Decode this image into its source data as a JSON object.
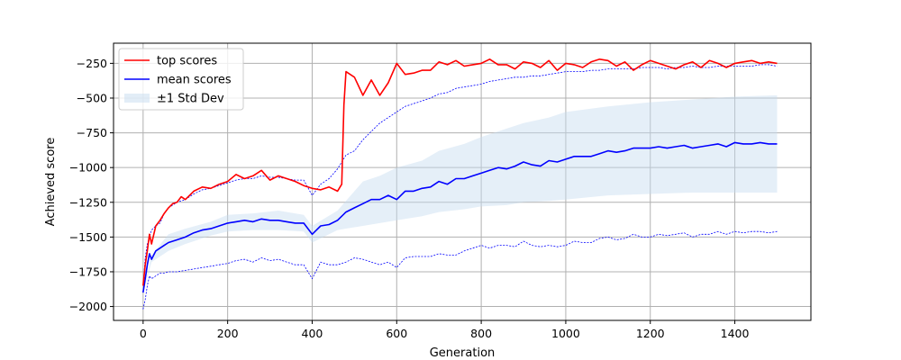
{
  "chart_data": {
    "type": "line",
    "xlabel": "Generation",
    "ylabel": "Achieved score",
    "xlim": [
      -70,
      1580
    ],
    "ylim": [
      -2100,
      -105
    ],
    "xticks": [
      0,
      200,
      400,
      600,
      800,
      1000,
      1200,
      1400
    ],
    "yticks": [
      -2000,
      -1750,
      -1500,
      -1250,
      -1000,
      -750,
      -500,
      -250
    ],
    "grid": true,
    "legend": {
      "placement": "top-left",
      "entries": [
        {
          "label": "top scores",
          "color": "#ff0000",
          "kind": "line"
        },
        {
          "label": "mean scores",
          "color": "#0000ff",
          "kind": "line"
        },
        {
          "label": "±1 Std Dev",
          "color": "#c6dbef",
          "kind": "patch"
        }
      ]
    },
    "series": [
      {
        "name": "top scores",
        "color": "#ff0000",
        "x": [
          0,
          5,
          10,
          15,
          20,
          30,
          40,
          50,
          60,
          70,
          80,
          90,
          100,
          120,
          140,
          160,
          180,
          200,
          220,
          240,
          260,
          280,
          300,
          320,
          340,
          360,
          380,
          400,
          420,
          440,
          460,
          470,
          475,
          480,
          500,
          520,
          540,
          560,
          580,
          600,
          620,
          640,
          660,
          680,
          700,
          720,
          740,
          760,
          780,
          800,
          820,
          840,
          860,
          880,
          900,
          920,
          940,
          960,
          980,
          1000,
          1020,
          1040,
          1060,
          1080,
          1100,
          1120,
          1140,
          1160,
          1180,
          1200,
          1220,
          1240,
          1260,
          1280,
          1300,
          1320,
          1340,
          1360,
          1380,
          1400,
          1420,
          1440,
          1460,
          1480,
          1500
        ],
        "values": [
          -1850,
          -1700,
          -1600,
          -1480,
          -1550,
          -1420,
          -1380,
          -1330,
          -1290,
          -1260,
          -1250,
          -1210,
          -1230,
          -1170,
          -1140,
          -1150,
          -1120,
          -1100,
          -1050,
          -1080,
          -1060,
          -1020,
          -1090,
          -1060,
          -1080,
          -1100,
          -1130,
          -1150,
          -1160,
          -1140,
          -1170,
          -1120,
          -550,
          -310,
          -350,
          -480,
          -370,
          -480,
          -390,
          -250,
          -330,
          -320,
          -300,
          -300,
          -240,
          -260,
          -230,
          -270,
          -260,
          -250,
          -220,
          -260,
          -260,
          -290,
          -240,
          -250,
          -280,
          -230,
          -300,
          -250,
          -260,
          -280,
          -240,
          -220,
          -230,
          -270,
          -240,
          -300,
          -260,
          -230,
          -250,
          -270,
          -290,
          -260,
          -240,
          -280,
          -230,
          -250,
          -280,
          -250,
          -240,
          -230,
          -250,
          -240,
          -250
        ]
      },
      {
        "name": "mean scores",
        "color": "#0000ff",
        "x": [
          0,
          5,
          10,
          15,
          20,
          30,
          40,
          50,
          60,
          80,
          100,
          120,
          140,
          160,
          180,
          200,
          220,
          240,
          260,
          280,
          300,
          320,
          340,
          360,
          380,
          400,
          420,
          440,
          460,
          480,
          500,
          520,
          540,
          560,
          580,
          600,
          620,
          640,
          660,
          680,
          700,
          720,
          740,
          760,
          780,
          800,
          820,
          840,
          860,
          880,
          900,
          920,
          940,
          960,
          980,
          1000,
          1020,
          1040,
          1060,
          1080,
          1100,
          1120,
          1140,
          1160,
          1180,
          1200,
          1220,
          1240,
          1260,
          1280,
          1300,
          1320,
          1340,
          1360,
          1380,
          1400,
          1420,
          1440,
          1460,
          1480,
          1500
        ],
        "values": [
          -1900,
          -1800,
          -1700,
          -1620,
          -1660,
          -1600,
          -1580,
          -1560,
          -1540,
          -1520,
          -1500,
          -1470,
          -1450,
          -1440,
          -1420,
          -1400,
          -1390,
          -1380,
          -1390,
          -1370,
          -1380,
          -1380,
          -1390,
          -1400,
          -1400,
          -1480,
          -1420,
          -1410,
          -1380,
          -1320,
          -1290,
          -1260,
          -1230,
          -1230,
          -1200,
          -1230,
          -1170,
          -1170,
          -1150,
          -1140,
          -1100,
          -1120,
          -1080,
          -1080,
          -1060,
          -1040,
          -1020,
          -1000,
          -1010,
          -990,
          -960,
          -980,
          -990,
          -950,
          -960,
          -940,
          -920,
          -920,
          -920,
          -900,
          -880,
          -890,
          -880,
          -860,
          -860,
          -860,
          -850,
          -860,
          -850,
          -840,
          -860,
          -850,
          -840,
          -830,
          -850,
          -820,
          -830,
          -830,
          -820,
          -830,
          -830
        ]
      },
      {
        "name": "",
        "color": "#0000ff",
        "style": "dotted-upper",
        "x": [
          0,
          5,
          10,
          15,
          20,
          30,
          40,
          50,
          60,
          80,
          100,
          120,
          140,
          160,
          180,
          200,
          220,
          240,
          260,
          280,
          300,
          320,
          340,
          360,
          380,
          400,
          420,
          440,
          460,
          480,
          500,
          520,
          540,
          560,
          580,
          600,
          620,
          640,
          660,
          680,
          700,
          720,
          740,
          760,
          780,
          800,
          820,
          840,
          860,
          880,
          900,
          920,
          940,
          960,
          980,
          1000,
          1020,
          1040,
          1060,
          1080,
          1100,
          1120,
          1140,
          1160,
          1180,
          1200,
          1220,
          1240,
          1260,
          1280,
          1300,
          1320,
          1340,
          1360,
          1380,
          1400,
          1420,
          1440,
          1460,
          1480,
          1500
        ],
        "values": [
          -1850,
          -1650,
          -1550,
          -1500,
          -1450,
          -1420,
          -1400,
          -1330,
          -1290,
          -1250,
          -1230,
          -1190,
          -1160,
          -1150,
          -1130,
          -1110,
          -1090,
          -1080,
          -1080,
          -1060,
          -1070,
          -1070,
          -1080,
          -1090,
          -1090,
          -1200,
          -1120,
          -1080,
          -1010,
          -910,
          -880,
          -800,
          -740,
          -680,
          -640,
          -600,
          -560,
          -540,
          -520,
          -500,
          -470,
          -460,
          -430,
          -420,
          -410,
          -400,
          -380,
          -370,
          -360,
          -350,
          -350,
          -340,
          -340,
          -330,
          -320,
          -310,
          -310,
          -310,
          -300,
          -300,
          -290,
          -290,
          -290,
          -290,
          -280,
          -280,
          -280,
          -290,
          -280,
          -280,
          -270,
          -280,
          -280,
          -270,
          -270,
          -270,
          -270,
          -270,
          -260,
          -260,
          -270
        ]
      },
      {
        "name": "",
        "color": "#0000ff",
        "style": "dotted-lower",
        "x": [
          0,
          5,
          10,
          15,
          20,
          30,
          40,
          50,
          60,
          80,
          100,
          120,
          140,
          160,
          180,
          200,
          220,
          240,
          260,
          280,
          300,
          320,
          340,
          360,
          380,
          400,
          420,
          440,
          460,
          480,
          500,
          520,
          540,
          560,
          580,
          600,
          620,
          640,
          660,
          680,
          700,
          720,
          740,
          760,
          780,
          800,
          820,
          840,
          860,
          880,
          900,
          920,
          940,
          960,
          980,
          1000,
          1020,
          1040,
          1060,
          1080,
          1100,
          1120,
          1140,
          1160,
          1180,
          1200,
          1220,
          1240,
          1260,
          1280,
          1300,
          1320,
          1340,
          1360,
          1380,
          1400,
          1420,
          1440,
          1460,
          1480,
          1500
        ],
        "values": [
          -2020,
          -1950,
          -1850,
          -1780,
          -1800,
          -1780,
          -1760,
          -1760,
          -1750,
          -1750,
          -1740,
          -1730,
          -1720,
          -1710,
          -1700,
          -1690,
          -1670,
          -1660,
          -1680,
          -1650,
          -1670,
          -1660,
          -1680,
          -1700,
          -1700,
          -1800,
          -1680,
          -1700,
          -1700,
          -1680,
          -1650,
          -1660,
          -1680,
          -1700,
          -1680,
          -1720,
          -1650,
          -1640,
          -1640,
          -1640,
          -1620,
          -1630,
          -1630,
          -1600,
          -1580,
          -1560,
          -1580,
          -1560,
          -1560,
          -1570,
          -1530,
          -1560,
          -1570,
          -1560,
          -1570,
          -1560,
          -1530,
          -1540,
          -1540,
          -1510,
          -1500,
          -1520,
          -1510,
          -1480,
          -1500,
          -1500,
          -1480,
          -1490,
          -1480,
          -1470,
          -1500,
          -1480,
          -1480,
          -1460,
          -1480,
          -1460,
          -1470,
          -1460,
          -1460,
          -1470,
          -1460
        ]
      }
    ],
    "band": {
      "label": "±1 Std Dev",
      "color": "#c6dbef",
      "x": [
        0,
        20,
        60,
        100,
        160,
        200,
        260,
        320,
        380,
        400,
        460,
        520,
        560,
        600,
        660,
        700,
        760,
        800,
        860,
        900,
        960,
        1000,
        1100,
        1200,
        1300,
        1400,
        1500
      ],
      "lower": [
        -1900,
        -1680,
        -1600,
        -1550,
        -1490,
        -1460,
        -1450,
        -1450,
        -1460,
        -1540,
        -1450,
        -1420,
        -1400,
        -1380,
        -1350,
        -1320,
        -1300,
        -1280,
        -1270,
        -1250,
        -1240,
        -1230,
        -1200,
        -1190,
        -1180,
        -1180,
        -1180
      ],
      "upper": [
        -1900,
        -1630,
        -1480,
        -1440,
        -1390,
        -1340,
        -1330,
        -1310,
        -1340,
        -1420,
        -1310,
        -1100,
        -1060,
        -1000,
        -950,
        -880,
        -830,
        -780,
        -720,
        -680,
        -640,
        -600,
        -560,
        -530,
        -510,
        -490,
        -480
      ]
    }
  }
}
